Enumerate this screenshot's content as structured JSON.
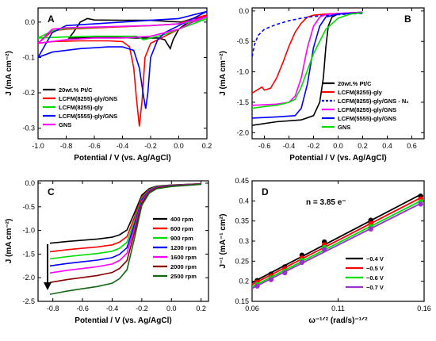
{
  "chart_data": [
    {
      "panel": "A",
      "type": "line",
      "xlabel": "Potential / V (vs. Ag/AgCl)",
      "ylabel": "J (mA cm⁻²)",
      "xlim": [
        -1.0,
        0.2
      ],
      "ylim": [
        -0.33,
        0.04
      ],
      "xticks": [
        -1.0,
        -0.8,
        -0.6,
        -0.4,
        -0.2,
        0.0,
        0.2
      ],
      "xtick_labels": [
        "-1.0",
        "-0.8",
        "-0.6",
        "-0.4",
        "-0.2",
        "0.0",
        "0.2"
      ],
      "yticks": [
        0.0,
        -0.1,
        -0.2,
        -0.3
      ],
      "ytick_labels": [
        "0.0",
        "-0.1",
        "-0.2",
        "-0.3"
      ],
      "legend_position": "lower-left",
      "series": [
        {
          "name": "20wt.% Pt/C",
          "color": "#000000",
          "style": "solid",
          "loop": [
            [
              -0.78,
              -0.045
            ],
            [
              -0.7,
              -0.045
            ],
            [
              -0.5,
              -0.043
            ],
            [
              -0.3,
              -0.045
            ],
            [
              -0.15,
              -0.045
            ],
            [
              -0.1,
              -0.05
            ],
            [
              -0.06,
              -0.075
            ],
            [
              -0.04,
              -0.05
            ],
            [
              0.0,
              -0.02
            ],
            [
              0.05,
              -0.005
            ],
            [
              0.1,
              0.005
            ],
            [
              0.2,
              0.015
            ],
            [
              0.2,
              0.015
            ],
            [
              0.1,
              0.01
            ],
            [
              0.02,
              0.0
            ],
            [
              -0.08,
              0.002
            ],
            [
              -0.2,
              0.005
            ],
            [
              -0.4,
              0.005
            ],
            [
              -0.6,
              0.006
            ],
            [
              -0.65,
              0.01
            ],
            [
              -0.7,
              0.0
            ],
            [
              -0.75,
              -0.03
            ],
            [
              -0.78,
              -0.045
            ]
          ]
        },
        {
          "name": "LCFM(8255)-gly/GNS",
          "color": "#ff0000",
          "style": "solid",
          "loop": [
            [
              -1.0,
              -0.06
            ],
            [
              -0.9,
              -0.055
            ],
            [
              -0.7,
              -0.053
            ],
            [
              -0.5,
              -0.053
            ],
            [
              -0.4,
              -0.055
            ],
            [
              -0.35,
              -0.07
            ],
            [
              -0.32,
              -0.13
            ],
            [
              -0.3,
              -0.22
            ],
            [
              -0.28,
              -0.295
            ],
            [
              -0.26,
              -0.22
            ],
            [
              -0.24,
              -0.1
            ],
            [
              -0.2,
              -0.06
            ],
            [
              -0.1,
              -0.04
            ],
            [
              0.0,
              -0.02
            ],
            [
              0.1,
              0.0
            ],
            [
              0.2,
              0.02
            ],
            [
              0.2,
              0.02
            ],
            [
              0.1,
              0.01
            ],
            [
              0.0,
              -0.005
            ],
            [
              -0.2,
              -0.01
            ],
            [
              -0.5,
              -0.015
            ],
            [
              -0.8,
              -0.02
            ],
            [
              -0.9,
              -0.025
            ],
            [
              -1.0,
              -0.06
            ]
          ]
        },
        {
          "name": "LCFM(8255)-gly",
          "color": "#00dd00",
          "style": "solid",
          "loop": [
            [
              -1.0,
              -0.045
            ],
            [
              -0.8,
              -0.042
            ],
            [
              -0.6,
              -0.04
            ],
            [
              -0.4,
              -0.04
            ],
            [
              -0.3,
              -0.04
            ],
            [
              -0.25,
              -0.05
            ],
            [
              -0.2,
              -0.045
            ],
            [
              -0.1,
              -0.035
            ],
            [
              0.0,
              -0.02
            ],
            [
              0.1,
              -0.005
            ],
            [
              0.2,
              0.01
            ],
            [
              0.2,
              0.01
            ],
            [
              0.1,
              0.0
            ],
            [
              0.0,
              -0.005
            ],
            [
              -0.2,
              -0.01
            ],
            [
              -0.4,
              -0.012
            ],
            [
              -0.6,
              -0.015
            ],
            [
              -0.8,
              -0.018
            ],
            [
              -0.9,
              -0.025
            ],
            [
              -1.0,
              -0.045
            ]
          ]
        },
        {
          "name": "LCFM(5555)-gly/GNS",
          "color": "#0000ff",
          "style": "solid",
          "loop": [
            [
              -1.0,
              -0.1
            ],
            [
              -0.9,
              -0.085
            ],
            [
              -0.7,
              -0.075
            ],
            [
              -0.5,
              -0.07
            ],
            [
              -0.4,
              -0.07
            ],
            [
              -0.32,
              -0.08
            ],
            [
              -0.28,
              -0.13
            ],
            [
              -0.25,
              -0.21
            ],
            [
              -0.235,
              -0.245
            ],
            [
              -0.22,
              -0.2
            ],
            [
              -0.2,
              -0.1
            ],
            [
              -0.15,
              -0.05
            ],
            [
              -0.1,
              -0.03
            ],
            [
              0.0,
              -0.01
            ],
            [
              0.1,
              0.01
            ],
            [
              0.2,
              0.03
            ],
            [
              0.2,
              0.03
            ],
            [
              0.1,
              0.02
            ],
            [
              0.0,
              0.01
            ],
            [
              -0.2,
              0.005
            ],
            [
              -0.4,
              0.0
            ],
            [
              -0.6,
              -0.005
            ],
            [
              -0.8,
              -0.01
            ],
            [
              -0.9,
              -0.03
            ],
            [
              -1.0,
              -0.1
            ]
          ]
        },
        {
          "name": "GNS",
          "color": "#ff00ff",
          "style": "solid",
          "loop": [
            [
              -1.0,
              -0.06
            ],
            [
              -0.8,
              -0.05
            ],
            [
              -0.6,
              -0.045
            ],
            [
              -0.4,
              -0.045
            ],
            [
              -0.2,
              -0.04
            ],
            [
              0.0,
              -0.02
            ],
            [
              0.1,
              0.0
            ],
            [
              0.2,
              0.015
            ],
            [
              0.2,
              0.015
            ],
            [
              0.1,
              0.005
            ],
            [
              0.0,
              -0.005
            ],
            [
              -0.2,
              -0.01
            ],
            [
              -0.4,
              -0.012
            ],
            [
              -0.6,
              -0.014
            ],
            [
              -0.8,
              -0.016
            ],
            [
              -0.9,
              -0.02
            ],
            [
              -1.0,
              -0.06
            ]
          ]
        }
      ]
    },
    {
      "panel": "B",
      "type": "line",
      "xlabel": "Potential / V (vs. Ag/AgCl)",
      "ylabel": "J (mA cm⁻²)",
      "xlim": [
        -0.7,
        0.7
      ],
      "ylim": [
        -2.1,
        0.05
      ],
      "xticks": [
        -0.6,
        -0.4,
        -0.2,
        0.0,
        0.2,
        0.4,
        0.6
      ],
      "xtick_labels": [
        "-0.6",
        "-0.4",
        "-0.2",
        "0.0",
        "0.2",
        "0.4",
        "0.6"
      ],
      "yticks": [
        0.0,
        -0.5,
        -1.0,
        -1.5,
        -2.0
      ],
      "ytick_labels": [
        "0.0",
        "-0.5",
        "-1.0",
        "-1.5",
        "-2.0"
      ],
      "legend_position": "lower-right",
      "series": [
        {
          "name": "20wt.% Pt/C",
          "color": "#000000",
          "style": "solid",
          "x": [
            -0.7,
            -0.5,
            -0.3,
            -0.2,
            -0.15,
            -0.12,
            -0.1,
            -0.08,
            -0.05,
            0.0,
            0.1,
            0.2
          ],
          "y": [
            -1.88,
            -1.82,
            -1.79,
            -1.72,
            -1.5,
            -1.1,
            -0.6,
            -0.25,
            -0.1,
            -0.05,
            -0.03,
            -0.02
          ]
        },
        {
          "name": "LCFM(8255)-gly",
          "color": "#ff0000",
          "style": "solid",
          "x": [
            -0.7,
            -0.62,
            -0.6,
            -0.55,
            -0.5,
            -0.45,
            -0.4,
            -0.35,
            -0.3,
            -0.25,
            -0.2,
            -0.1,
            0.0,
            0.2
          ],
          "y": [
            -1.35,
            -1.25,
            -1.3,
            -1.27,
            -1.1,
            -0.85,
            -0.58,
            -0.35,
            -0.2,
            -0.1,
            -0.07,
            -0.05,
            -0.04,
            -0.03
          ]
        },
        {
          "name": "LCFM(8255)-gly/GNS - N₂",
          "color": "#0000ff",
          "style": "dashed",
          "x": [
            -0.7,
            -0.68,
            -0.65,
            -0.6,
            -0.5,
            -0.4,
            -0.3,
            -0.2,
            0.0,
            0.2
          ],
          "y": [
            -0.75,
            -0.55,
            -0.4,
            -0.3,
            -0.22,
            -0.16,
            -0.12,
            -0.09,
            -0.06,
            -0.04
          ]
        },
        {
          "name": "LCFM(8255)-gly/GNS",
          "color": "#ff00ff",
          "style": "solid",
          "x": [
            -0.7,
            -0.5,
            -0.4,
            -0.35,
            -0.3,
            -0.25,
            -0.2,
            -0.15,
            -0.1,
            0.0,
            0.2
          ],
          "y": [
            -1.55,
            -1.53,
            -1.5,
            -1.4,
            -1.1,
            -0.6,
            -0.25,
            -0.1,
            -0.06,
            -0.04,
            -0.02
          ]
        },
        {
          "name": "LCFM(5555)-gly/GNS",
          "color": "#0000ff",
          "style": "solid",
          "x": [
            -0.7,
            -0.5,
            -0.35,
            -0.3,
            -0.25,
            -0.2,
            -0.15,
            -0.1,
            0.0,
            0.2
          ],
          "y": [
            -1.76,
            -1.74,
            -1.72,
            -1.6,
            -1.2,
            -0.6,
            -0.25,
            -0.1,
            -0.05,
            -0.03
          ]
        },
        {
          "name": "GNS",
          "color": "#00dd00",
          "style": "solid",
          "x": [
            -0.7,
            -0.6,
            -0.5,
            -0.4,
            -0.35,
            -0.3,
            -0.2,
            -0.1,
            0.0,
            0.1,
            0.2
          ],
          "y": [
            -1.6,
            -1.57,
            -1.55,
            -1.5,
            -1.45,
            -1.25,
            -0.7,
            -0.3,
            -0.12,
            -0.05,
            -0.03
          ]
        }
      ]
    },
    {
      "panel": "C",
      "type": "line",
      "xlabel": "Potential / V (vs. Ag/AgCl)",
      "ylabel": "J (mA cm⁻²)",
      "xlim": [
        -0.9,
        0.25
      ],
      "ylim": [
        -2.5,
        0.05
      ],
      "xticks": [
        -0.8,
        -0.6,
        -0.4,
        -0.2,
        0.0,
        0.2
      ],
      "xtick_labels": [
        "-0.8",
        "-0.6",
        "-0.4",
        "-0.2",
        "0.0",
        "0.2"
      ],
      "yticks": [
        0.0,
        -0.5,
        -1.0,
        -1.5,
        -2.0,
        -2.5
      ],
      "ytick_labels": [
        "0.0",
        "-0.5",
        "-1.0",
        "-1.5",
        "-2.0",
        "-2.5"
      ],
      "legend_position": "right",
      "x": [
        -0.82,
        -0.7,
        -0.6,
        -0.5,
        -0.4,
        -0.35,
        -0.3,
        -0.25,
        -0.2,
        -0.15,
        -0.1,
        0.0,
        0.1,
        0.2
      ],
      "profile": [
        1.0,
        0.97,
        0.95,
        0.93,
        0.9,
        0.86,
        0.78,
        0.5,
        0.2,
        0.09,
        0.05,
        0.03,
        0.02,
        0.01
      ],
      "series": [
        {
          "name": "400 rpm",
          "color": "#000000",
          "limit": -1.27
        },
        {
          "name": "600 rpm",
          "color": "#ff0000",
          "limit": -1.45
        },
        {
          "name": "900 rpm",
          "color": "#00dd00",
          "limit": -1.6
        },
        {
          "name": "1200 rpm",
          "color": "#0000ff",
          "limit": -1.75
        },
        {
          "name": "1600 rpm",
          "color": "#ff00ff",
          "limit": -1.9
        },
        {
          "name": "2000 rpm",
          "color": "#880000",
          "limit": -2.1
        },
        {
          "name": "2500 rpm",
          "color": "#116611",
          "limit": -2.35
        }
      ]
    },
    {
      "panel": "D",
      "type": "scatter",
      "annotation": "n = 3.85 e⁻",
      "xlabel": "ω⁻¹ᐟ² (rad/s)⁻¹ᐟ²",
      "ylabel": "J⁻¹ (mA⁻¹ cm²)",
      "xlim": [
        0.06,
        0.16
      ],
      "ylim": [
        0.15,
        0.45
      ],
      "xticks": [
        0.06,
        0.11,
        0.16
      ],
      "xtick_labels": [
        "0.06",
        "0.11",
        "0.16"
      ],
      "yticks": [
        0.15,
        0.2,
        0.25,
        0.3,
        0.35,
        0.4,
        0.45
      ],
      "ytick_labels": [
        "0.15",
        "0.2",
        "0.25",
        "0.3",
        "0.35",
        "0.4",
        "0.45"
      ],
      "legend_position": "lower-right",
      "x": [
        0.063,
        0.071,
        0.079,
        0.089,
        0.102,
        0.129,
        0.158
      ],
      "series": [
        {
          "name": "−0.4 V",
          "color": "#000000",
          "y": [
            0.202,
            0.218,
            0.236,
            0.265,
            0.298,
            0.352,
            0.412
          ]
        },
        {
          "name": "−0.5 V",
          "color": "#ff0000",
          "y": [
            0.198,
            0.213,
            0.231,
            0.258,
            0.291,
            0.344,
            0.405
          ]
        },
        {
          "name": "−0.6 V",
          "color": "#00dd00",
          "y": [
            0.192,
            0.208,
            0.225,
            0.252,
            0.284,
            0.336,
            0.398
          ]
        },
        {
          "name": "−0.7 V",
          "color": "#9933cc",
          "y": [
            0.188,
            0.204,
            0.221,
            0.247,
            0.279,
            0.33,
            0.392
          ]
        }
      ]
    }
  ]
}
